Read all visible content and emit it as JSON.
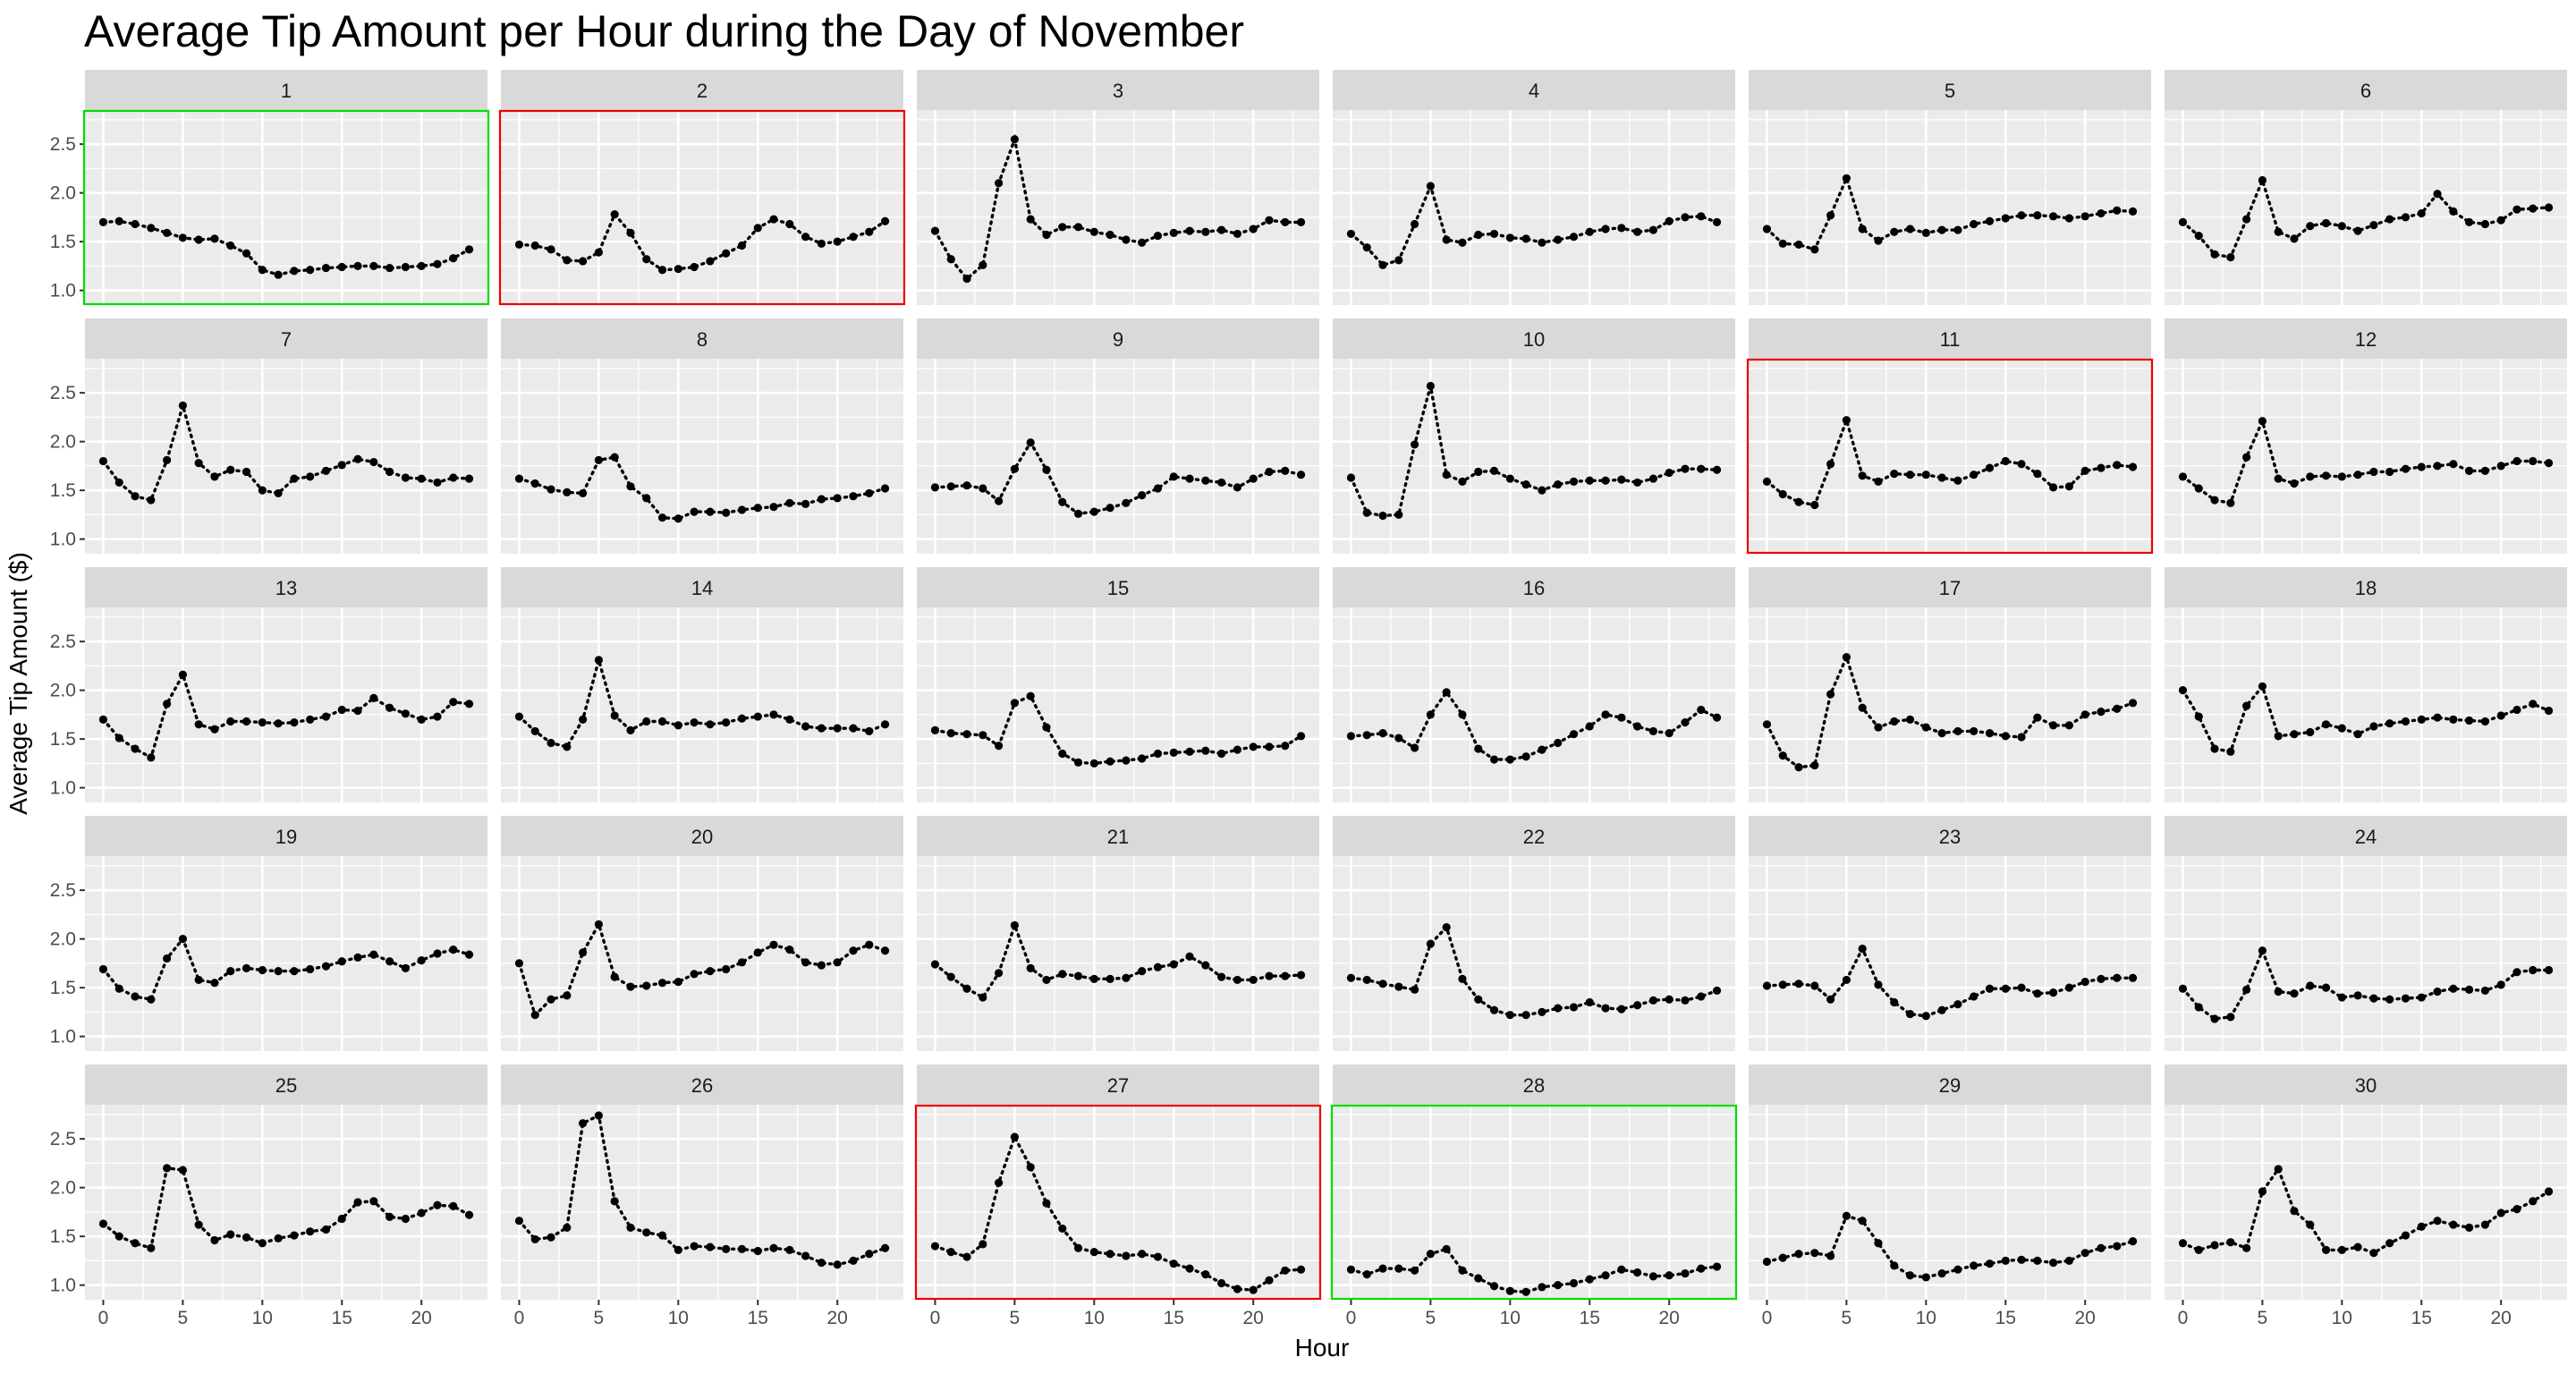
{
  "chart_data": {
    "type": "line",
    "style": "dotted line with point markers, faceted small multiples (6 columns x 5 rows)",
    "title": "Average Tip Amount per Hour during the Day of November",
    "xlabel": "Hour",
    "ylabel": "Average Tip Amount ($)",
    "x": [
      0,
      1,
      2,
      3,
      4,
      5,
      6,
      7,
      8,
      9,
      10,
      11,
      12,
      13,
      14,
      15,
      16,
      17,
      18,
      19,
      20,
      21,
      22,
      23
    ],
    "x_ticks": [
      0,
      5,
      10,
      15,
      20
    ],
    "x_tick_labels": [
      "0",
      "5",
      "10",
      "15",
      "20"
    ],
    "y_ticks": [
      1.0,
      1.5,
      2.0,
      2.5
    ],
    "y_tick_labels": [
      "1.0",
      "1.5",
      "2.0",
      "2.5"
    ],
    "xlim": [
      -1.15,
      24.15
    ],
    "ylim": [
      0.85,
      2.85
    ],
    "grid": true,
    "highlight_colors": {
      "green": "#00dd00",
      "red": "#ee0000"
    },
    "facets": [
      {
        "label": "1",
        "highlight": "green",
        "values": [
          1.7,
          1.71,
          1.68,
          1.64,
          1.59,
          1.54,
          1.52,
          1.53,
          1.46,
          1.38,
          1.21,
          1.16,
          1.2,
          1.21,
          1.23,
          1.24,
          1.25,
          1.25,
          1.23,
          1.24,
          1.25,
          1.27,
          1.33,
          1.42
        ]
      },
      {
        "label": "2",
        "highlight": "red",
        "values": [
          1.47,
          1.46,
          1.42,
          1.31,
          1.3,
          1.39,
          1.78,
          1.59,
          1.32,
          1.21,
          1.22,
          1.24,
          1.3,
          1.38,
          1.46,
          1.64,
          1.73,
          1.68,
          1.55,
          1.48,
          1.5,
          1.55,
          1.6,
          1.71
        ]
      },
      {
        "label": "3",
        "highlight": null,
        "values": [
          1.61,
          1.32,
          1.12,
          1.26,
          2.1,
          2.55,
          1.73,
          1.57,
          1.65,
          1.65,
          1.6,
          1.57,
          1.52,
          1.49,
          1.56,
          1.59,
          1.61,
          1.6,
          1.62,
          1.58,
          1.63,
          1.72,
          1.7,
          1.7
        ]
      },
      {
        "label": "4",
        "highlight": null,
        "values": [
          1.58,
          1.44,
          1.26,
          1.31,
          1.68,
          2.07,
          1.52,
          1.49,
          1.57,
          1.58,
          1.54,
          1.53,
          1.49,
          1.52,
          1.55,
          1.6,
          1.63,
          1.64,
          1.6,
          1.62,
          1.71,
          1.75,
          1.76,
          1.7
        ]
      },
      {
        "label": "5",
        "highlight": null,
        "values": [
          1.63,
          1.48,
          1.47,
          1.42,
          1.77,
          2.15,
          1.63,
          1.51,
          1.6,
          1.63,
          1.59,
          1.62,
          1.62,
          1.68,
          1.71,
          1.74,
          1.77,
          1.77,
          1.76,
          1.74,
          1.76,
          1.79,
          1.82,
          1.81
        ]
      },
      {
        "label": "6",
        "highlight": null,
        "values": [
          1.7,
          1.56,
          1.37,
          1.34,
          1.73,
          2.13,
          1.6,
          1.53,
          1.66,
          1.69,
          1.66,
          1.61,
          1.67,
          1.73,
          1.75,
          1.79,
          1.99,
          1.81,
          1.7,
          1.68,
          1.72,
          1.83,
          1.84,
          1.85
        ]
      },
      {
        "label": "7",
        "highlight": null,
        "values": [
          1.8,
          1.58,
          1.44,
          1.4,
          1.81,
          2.37,
          1.78,
          1.64,
          1.71,
          1.69,
          1.5,
          1.47,
          1.62,
          1.64,
          1.7,
          1.76,
          1.82,
          1.79,
          1.69,
          1.63,
          1.62,
          1.58,
          1.63,
          1.62
        ]
      },
      {
        "label": "8",
        "highlight": null,
        "values": [
          1.62,
          1.57,
          1.51,
          1.48,
          1.47,
          1.81,
          1.84,
          1.54,
          1.42,
          1.22,
          1.21,
          1.28,
          1.28,
          1.27,
          1.3,
          1.32,
          1.33,
          1.37,
          1.36,
          1.41,
          1.42,
          1.44,
          1.47,
          1.52
        ]
      },
      {
        "label": "9",
        "highlight": null,
        "values": [
          1.53,
          1.54,
          1.55,
          1.52,
          1.39,
          1.72,
          1.99,
          1.71,
          1.38,
          1.26,
          1.28,
          1.32,
          1.37,
          1.45,
          1.52,
          1.64,
          1.62,
          1.6,
          1.58,
          1.53,
          1.62,
          1.69,
          1.7,
          1.66
        ]
      },
      {
        "label": "10",
        "highlight": null,
        "values": [
          1.63,
          1.27,
          1.24,
          1.25,
          1.97,
          2.57,
          1.66,
          1.59,
          1.69,
          1.7,
          1.62,
          1.56,
          1.5,
          1.56,
          1.59,
          1.6,
          1.6,
          1.61,
          1.58,
          1.62,
          1.68,
          1.72,
          1.72,
          1.71
        ]
      },
      {
        "label": "11",
        "highlight": "red",
        "values": [
          1.59,
          1.46,
          1.38,
          1.35,
          1.77,
          2.22,
          1.65,
          1.59,
          1.67,
          1.66,
          1.66,
          1.63,
          1.6,
          1.66,
          1.73,
          1.8,
          1.77,
          1.67,
          1.53,
          1.54,
          1.7,
          1.73,
          1.76,
          1.74
        ]
      },
      {
        "label": "12",
        "highlight": null,
        "values": [
          1.64,
          1.52,
          1.4,
          1.37,
          1.84,
          2.21,
          1.62,
          1.57,
          1.64,
          1.65,
          1.64,
          1.66,
          1.69,
          1.69,
          1.72,
          1.74,
          1.75,
          1.77,
          1.7,
          1.7,
          1.75,
          1.8,
          1.8,
          1.78
        ]
      },
      {
        "label": "13",
        "highlight": null,
        "values": [
          1.7,
          1.51,
          1.4,
          1.31,
          1.86,
          2.16,
          1.65,
          1.6,
          1.68,
          1.68,
          1.67,
          1.66,
          1.67,
          1.7,
          1.73,
          1.8,
          1.79,
          1.92,
          1.82,
          1.76,
          1.7,
          1.73,
          1.88,
          1.86
        ]
      },
      {
        "label": "14",
        "highlight": null,
        "values": [
          1.73,
          1.58,
          1.46,
          1.42,
          1.7,
          2.31,
          1.74,
          1.59,
          1.68,
          1.68,
          1.64,
          1.67,
          1.65,
          1.67,
          1.71,
          1.73,
          1.75,
          1.7,
          1.63,
          1.61,
          1.61,
          1.61,
          1.58,
          1.65
        ]
      },
      {
        "label": "15",
        "highlight": null,
        "values": [
          1.59,
          1.56,
          1.55,
          1.54,
          1.43,
          1.87,
          1.94,
          1.62,
          1.35,
          1.26,
          1.25,
          1.27,
          1.28,
          1.3,
          1.35,
          1.36,
          1.37,
          1.38,
          1.35,
          1.39,
          1.42,
          1.42,
          1.43,
          1.53
        ]
      },
      {
        "label": "16",
        "highlight": null,
        "values": [
          1.53,
          1.54,
          1.56,
          1.51,
          1.41,
          1.75,
          1.98,
          1.75,
          1.4,
          1.29,
          1.29,
          1.32,
          1.39,
          1.46,
          1.55,
          1.63,
          1.75,
          1.72,
          1.63,
          1.58,
          1.56,
          1.67,
          1.8,
          1.72
        ]
      },
      {
        "label": "17",
        "highlight": null,
        "values": [
          1.65,
          1.33,
          1.21,
          1.23,
          1.96,
          2.34,
          1.82,
          1.62,
          1.68,
          1.7,
          1.62,
          1.56,
          1.58,
          1.58,
          1.56,
          1.53,
          1.52,
          1.72,
          1.64,
          1.64,
          1.75,
          1.78,
          1.81,
          1.87
        ]
      },
      {
        "label": "18",
        "highlight": null,
        "values": [
          2.0,
          1.73,
          1.4,
          1.37,
          1.84,
          2.04,
          1.53,
          1.55,
          1.57,
          1.65,
          1.61,
          1.55,
          1.63,
          1.66,
          1.68,
          1.7,
          1.72,
          1.7,
          1.69,
          1.68,
          1.74,
          1.8,
          1.86,
          1.79
        ]
      },
      {
        "label": "19",
        "highlight": null,
        "values": [
          1.69,
          1.49,
          1.41,
          1.38,
          1.8,
          2.0,
          1.58,
          1.55,
          1.67,
          1.7,
          1.68,
          1.67,
          1.67,
          1.69,
          1.72,
          1.77,
          1.81,
          1.84,
          1.77,
          1.7,
          1.78,
          1.85,
          1.89,
          1.84
        ]
      },
      {
        "label": "20",
        "highlight": null,
        "values": [
          1.75,
          1.22,
          1.38,
          1.42,
          1.86,
          2.15,
          1.61,
          1.51,
          1.52,
          1.55,
          1.56,
          1.64,
          1.67,
          1.69,
          1.76,
          1.86,
          1.94,
          1.89,
          1.76,
          1.73,
          1.76,
          1.88,
          1.94,
          1.88
        ]
      },
      {
        "label": "21",
        "highlight": null,
        "values": [
          1.74,
          1.61,
          1.49,
          1.4,
          1.65,
          2.14,
          1.7,
          1.58,
          1.64,
          1.62,
          1.59,
          1.59,
          1.6,
          1.67,
          1.71,
          1.74,
          1.82,
          1.73,
          1.61,
          1.58,
          1.58,
          1.62,
          1.62,
          1.63
        ]
      },
      {
        "label": "22",
        "highlight": null,
        "values": [
          1.6,
          1.58,
          1.54,
          1.51,
          1.48,
          1.95,
          2.12,
          1.59,
          1.38,
          1.27,
          1.22,
          1.22,
          1.25,
          1.29,
          1.3,
          1.35,
          1.29,
          1.28,
          1.32,
          1.37,
          1.38,
          1.37,
          1.41,
          1.47
        ]
      },
      {
        "label": "23",
        "highlight": null,
        "values": [
          1.52,
          1.53,
          1.54,
          1.52,
          1.38,
          1.58,
          1.9,
          1.53,
          1.35,
          1.23,
          1.21,
          1.27,
          1.33,
          1.41,
          1.49,
          1.49,
          1.5,
          1.44,
          1.45,
          1.5,
          1.56,
          1.59,
          1.6,
          1.6
        ]
      },
      {
        "label": "24",
        "highlight": null,
        "values": [
          1.49,
          1.3,
          1.18,
          1.2,
          1.48,
          1.88,
          1.46,
          1.44,
          1.52,
          1.5,
          1.4,
          1.42,
          1.39,
          1.38,
          1.39,
          1.4,
          1.46,
          1.49,
          1.48,
          1.47,
          1.53,
          1.66,
          1.68,
          1.68
        ]
      },
      {
        "label": "25",
        "highlight": null,
        "values": [
          1.63,
          1.5,
          1.43,
          1.38,
          2.2,
          2.18,
          1.62,
          1.46,
          1.52,
          1.49,
          1.43,
          1.48,
          1.51,
          1.55,
          1.57,
          1.68,
          1.85,
          1.86,
          1.7,
          1.68,
          1.74,
          1.82,
          1.81,
          1.72
        ]
      },
      {
        "label": "26",
        "highlight": null,
        "values": [
          1.66,
          1.47,
          1.49,
          1.59,
          2.66,
          2.74,
          1.86,
          1.59,
          1.54,
          1.51,
          1.36,
          1.4,
          1.39,
          1.37,
          1.37,
          1.35,
          1.38,
          1.36,
          1.3,
          1.23,
          1.21,
          1.25,
          1.32,
          1.38
        ]
      },
      {
        "label": "27",
        "highlight": "red",
        "values": [
          1.4,
          1.34,
          1.29,
          1.42,
          2.05,
          2.52,
          2.21,
          1.84,
          1.58,
          1.38,
          1.34,
          1.32,
          1.3,
          1.32,
          1.29,
          1.22,
          1.17,
          1.11,
          1.02,
          0.96,
          0.95,
          1.05,
          1.15,
          1.16
        ]
      },
      {
        "label": "28",
        "highlight": "green",
        "values": [
          1.16,
          1.11,
          1.17,
          1.17,
          1.15,
          1.32,
          1.37,
          1.15,
          1.07,
          0.99,
          0.94,
          0.93,
          0.98,
          1.0,
          1.02,
          1.06,
          1.1,
          1.16,
          1.13,
          1.09,
          1.1,
          1.12,
          1.17,
          1.19
        ]
      },
      {
        "label": "29",
        "highlight": null,
        "values": [
          1.24,
          1.28,
          1.32,
          1.33,
          1.3,
          1.71,
          1.66,
          1.43,
          1.2,
          1.1,
          1.08,
          1.12,
          1.16,
          1.2,
          1.22,
          1.25,
          1.26,
          1.25,
          1.23,
          1.25,
          1.33,
          1.38,
          1.4,
          1.45
        ]
      },
      {
        "label": "30",
        "highlight": null,
        "values": [
          1.43,
          1.36,
          1.41,
          1.44,
          1.38,
          1.96,
          2.19,
          1.76,
          1.62,
          1.36,
          1.36,
          1.39,
          1.33,
          1.43,
          1.51,
          1.6,
          1.66,
          1.62,
          1.59,
          1.62,
          1.74,
          1.78,
          1.86,
          1.96
        ]
      }
    ]
  }
}
